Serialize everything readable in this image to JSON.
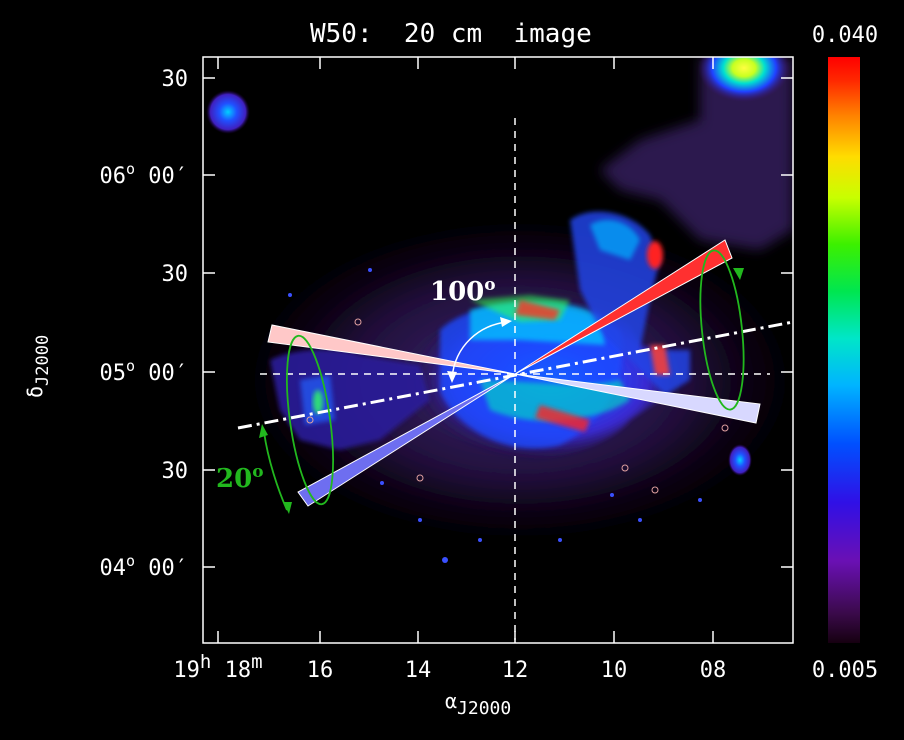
{
  "figure": {
    "title": "W50:  20 cm  image",
    "ylabel": "δJ2000",
    "ylabel_main": "δ",
    "ylabel_sub": "J2000",
    "xlabel_main": "α",
    "xlabel_sub": "J2000",
    "y_ticks": [
      {
        "text": "30"
      },
      {
        "main": "06",
        "sup": "o",
        "rest": " 00′"
      },
      {
        "text": "30"
      },
      {
        "main": "05",
        "sup": "o",
        "rest": " 00′"
      },
      {
        "text": "30"
      },
      {
        "main": "04",
        "sup": "o",
        "rest": " 00′"
      }
    ],
    "x_ticks": [
      {
        "main": "19",
        "sup": "h",
        "rest": " 18",
        "sup2": "m"
      },
      {
        "text": "16"
      },
      {
        "text": "14"
      },
      {
        "text": "12"
      },
      {
        "text": "10"
      },
      {
        "text": "08"
      }
    ],
    "colorbar": {
      "max": "0.040",
      "min": "0.005"
    },
    "annotations": {
      "angle_100_main": "100",
      "angle_100_sup": "o",
      "angle_20_main": "20",
      "angle_20_sup": "o"
    },
    "colors": {
      "angle_100": "#ffffff",
      "angle_20": "#22b81e",
      "cone_red": "#ff3030",
      "cone_pink": "#ffc8c8",
      "cone_blue": "#6e6ef0",
      "cone_lavender": "#d8d8ff"
    }
  }
}
